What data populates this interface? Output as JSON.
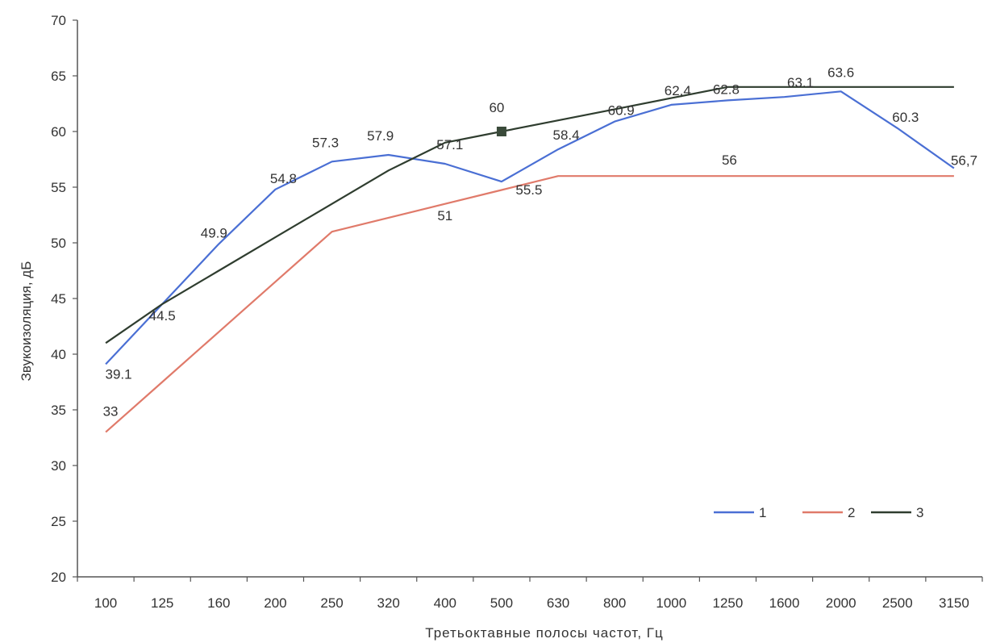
{
  "chart_data": {
    "type": "line",
    "title": "",
    "xlabel": "Третьоктавные полосы частот, Гц",
    "ylabel": "Звукоизоляция, дБ",
    "categories": [
      "100",
      "125",
      "160",
      "200",
      "250",
      "320",
      "400",
      "500",
      "630",
      "800",
      "1000",
      "1250",
      "1600",
      "2000",
      "2500",
      "3150"
    ],
    "ylim": [
      20,
      70
    ],
    "yticks": [
      "20",
      "25",
      "30",
      "35",
      "40",
      "45",
      "50",
      "55",
      "60",
      "65",
      "70"
    ],
    "grid": false,
    "legend_position": "bottom-right",
    "series": [
      {
        "name": "1",
        "color": "#4a6fd4",
        "values": [
          39.1,
          44.5,
          49.9,
          54.8,
          57.3,
          57.9,
          57.1,
          55.5,
          58.4,
          60.9,
          62.4,
          62.8,
          63.1,
          63.6,
          60.3,
          56.7
        ],
        "labels": [
          "39.1",
          "44.5",
          "49.9",
          "54.8",
          "57.3",
          "57.9",
          "57.1",
          "55.5",
          "58.4",
          "60.9",
          "62,4",
          "62.8",
          "63.1",
          "63.6",
          "60.3",
          "56,7"
        ]
      },
      {
        "name": "2",
        "color": "#e07a6a",
        "values": [
          33,
          37.5,
          42,
          46.5,
          51,
          52.25,
          53.5,
          54.75,
          56,
          56,
          56,
          56,
          56,
          56,
          56,
          56
        ],
        "labels": [
          "33",
          null,
          null,
          null,
          null,
          null,
          null,
          null,
          null,
          null,
          null,
          "56",
          null,
          null,
          null,
          null
        ],
        "plot_index": [
          0,
          1,
          2,
          3,
          4,
          5,
          6,
          7,
          8,
          9,
          10,
          11,
          12,
          13,
          14,
          15
        ]
      },
      {
        "name": "3",
        "color": "#2f3d2f",
        "values": [
          41,
          44.5,
          47.5,
          50.5,
          53.5,
          56.5,
          59,
          60,
          61,
          62,
          63,
          64,
          64,
          64,
          64,
          64
        ],
        "labels": [
          null,
          null,
          null,
          null,
          null,
          null,
          null,
          "60",
          null,
          null,
          null,
          null,
          null,
          null,
          null,
          null
        ]
      }
    ]
  }
}
